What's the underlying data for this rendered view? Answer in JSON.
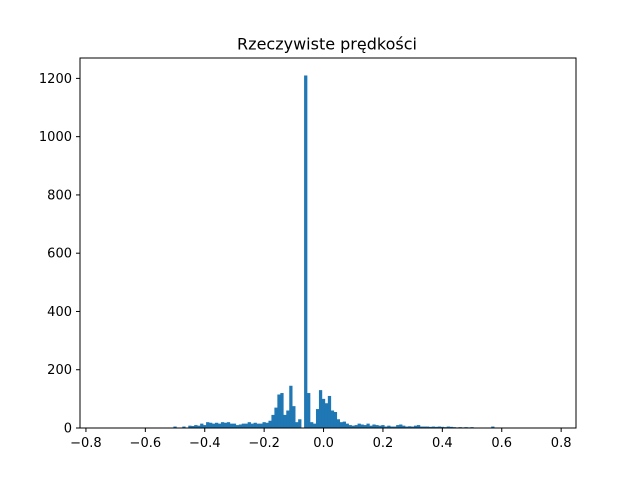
{
  "chart_data": {
    "type": "bar",
    "title": "Rzeczywiste prędkości",
    "xlabel": "",
    "ylabel": "",
    "xlim": [
      -0.82,
      0.85
    ],
    "ylim": [
      0,
      1270
    ],
    "grid": false,
    "bar_width": 0.011,
    "x_ticks": [
      -0.8,
      -0.6,
      -0.4,
      -0.2,
      0.0,
      0.2,
      0.4,
      0.6,
      0.8
    ],
    "x_tick_labels": [
      "−0.8",
      "−0.6",
      "−0.4",
      "−0.2",
      "0.0",
      "0.2",
      "0.4",
      "0.6",
      "0.8"
    ],
    "y_ticks": [
      0,
      200,
      400,
      600,
      800,
      1000,
      1200
    ],
    "y_tick_labels": [
      "0",
      "200",
      "400",
      "600",
      "800",
      "1000",
      "1200"
    ],
    "series": [
      {
        "color": "#1f77b4",
        "x": [
          -0.5,
          -0.47,
          -0.45,
          -0.44,
          -0.43,
          -0.42,
          -0.41,
          -0.4,
          -0.39,
          -0.38,
          -0.37,
          -0.36,
          -0.35,
          -0.34,
          -0.33,
          -0.32,
          -0.31,
          -0.3,
          -0.29,
          -0.28,
          -0.27,
          -0.26,
          -0.25,
          -0.24,
          -0.23,
          -0.22,
          -0.21,
          -0.2,
          -0.19,
          -0.18,
          -0.17,
          -0.16,
          -0.15,
          -0.14,
          -0.13,
          -0.12,
          -0.11,
          -0.1,
          -0.09,
          -0.08,
          -0.07,
          -0.06,
          -0.05,
          -0.04,
          -0.03,
          -0.02,
          -0.01,
          0.0,
          0.01,
          0.02,
          0.03,
          0.04,
          0.05,
          0.06,
          0.07,
          0.08,
          0.09,
          0.1,
          0.11,
          0.12,
          0.13,
          0.14,
          0.15,
          0.16,
          0.17,
          0.18,
          0.19,
          0.2,
          0.21,
          0.22,
          0.23,
          0.24,
          0.25,
          0.26,
          0.27,
          0.28,
          0.29,
          0.3,
          0.31,
          0.32,
          0.33,
          0.34,
          0.35,
          0.36,
          0.37,
          0.38,
          0.39,
          0.4,
          0.41,
          0.42,
          0.43,
          0.44,
          0.45,
          0.46,
          0.47,
          0.48,
          0.49,
          0.5,
          0.57
        ],
        "values": [
          5,
          5,
          8,
          7,
          10,
          8,
          15,
          10,
          20,
          18,
          15,
          18,
          15,
          20,
          18,
          20,
          15,
          15,
          10,
          12,
          15,
          15,
          20,
          15,
          18,
          15,
          15,
          20,
          18,
          25,
          45,
          70,
          115,
          120,
          45,
          60,
          145,
          75,
          20,
          30,
          0,
          1210,
          120,
          20,
          15,
          65,
          130,
          100,
          85,
          110,
          60,
          55,
          30,
          20,
          22,
          15,
          10,
          8,
          10,
          15,
          12,
          10,
          15,
          8,
          12,
          10,
          8,
          10,
          5,
          8,
          5,
          5,
          10,
          12,
          8,
          5,
          6,
          5,
          8,
          10,
          5,
          5,
          5,
          4,
          5,
          4,
          5,
          4,
          3,
          5,
          4,
          3,
          2,
          3,
          2,
          3,
          2,
          3,
          5
        ]
      }
    ]
  }
}
